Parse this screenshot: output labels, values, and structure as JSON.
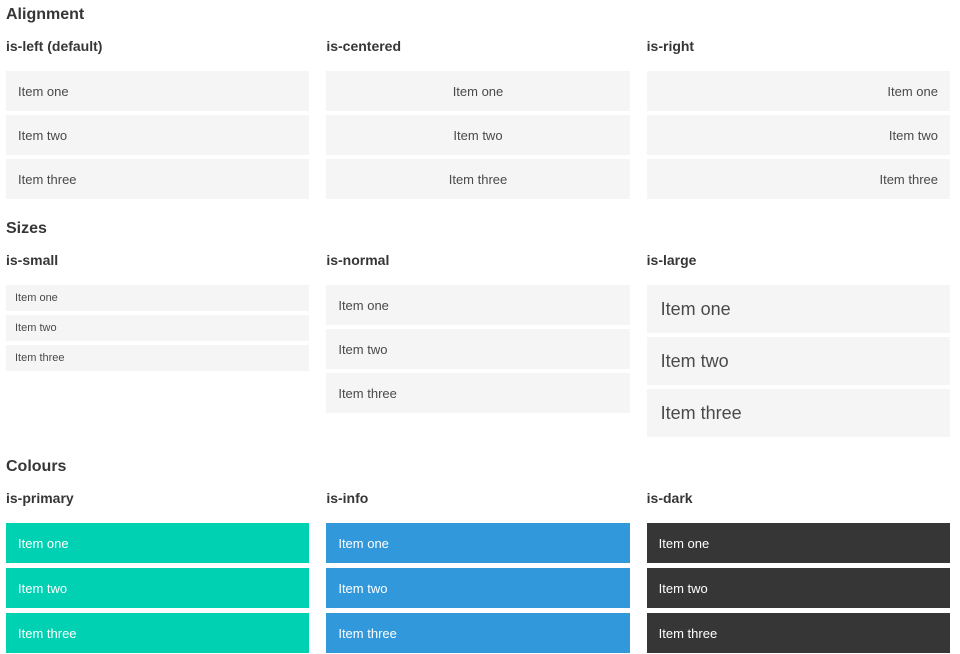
{
  "colors": {
    "item_background": "#f5f5f5",
    "item_text": "#4a4a4a",
    "heading_text": "#363636",
    "primary": "#00d1b2",
    "info": "#3298dc",
    "dark": "#363636",
    "light_text": "#ffffff"
  },
  "sections": [
    {
      "title": "Alignment",
      "groups": [
        {
          "label": "is-left (default)",
          "align": "left",
          "size": "normal",
          "variant": "default",
          "items": [
            "Item one",
            "Item two",
            "Item three"
          ]
        },
        {
          "label": "is-centered",
          "align": "center",
          "size": "normal",
          "variant": "default",
          "items": [
            "Item one",
            "Item two",
            "Item three"
          ]
        },
        {
          "label": "is-right",
          "align": "right",
          "size": "normal",
          "variant": "default",
          "items": [
            "Item one",
            "Item two",
            "Item three"
          ]
        }
      ]
    },
    {
      "title": "Sizes",
      "groups": [
        {
          "label": "is-small",
          "align": "left",
          "size": "small",
          "variant": "default",
          "items": [
            "Item one",
            "Item two",
            "Item three"
          ]
        },
        {
          "label": "is-normal",
          "align": "left",
          "size": "normal",
          "variant": "default",
          "items": [
            "Item one",
            "Item two",
            "Item three"
          ]
        },
        {
          "label": "is-large",
          "align": "left",
          "size": "large",
          "variant": "default",
          "items": [
            "Item one",
            "Item two",
            "Item three"
          ]
        }
      ]
    },
    {
      "title": "Colours",
      "groups": [
        {
          "label": "is-primary",
          "align": "left",
          "size": "normal",
          "variant": "primary",
          "items": [
            "Item one",
            "Item two",
            "Item three"
          ]
        },
        {
          "label": "is-info",
          "align": "left",
          "size": "normal",
          "variant": "info",
          "items": [
            "Item one",
            "Item two",
            "Item three"
          ]
        },
        {
          "label": "is-dark",
          "align": "left",
          "size": "normal",
          "variant": "dark",
          "items": [
            "Item one",
            "Item two",
            "Item three"
          ]
        }
      ]
    }
  ]
}
